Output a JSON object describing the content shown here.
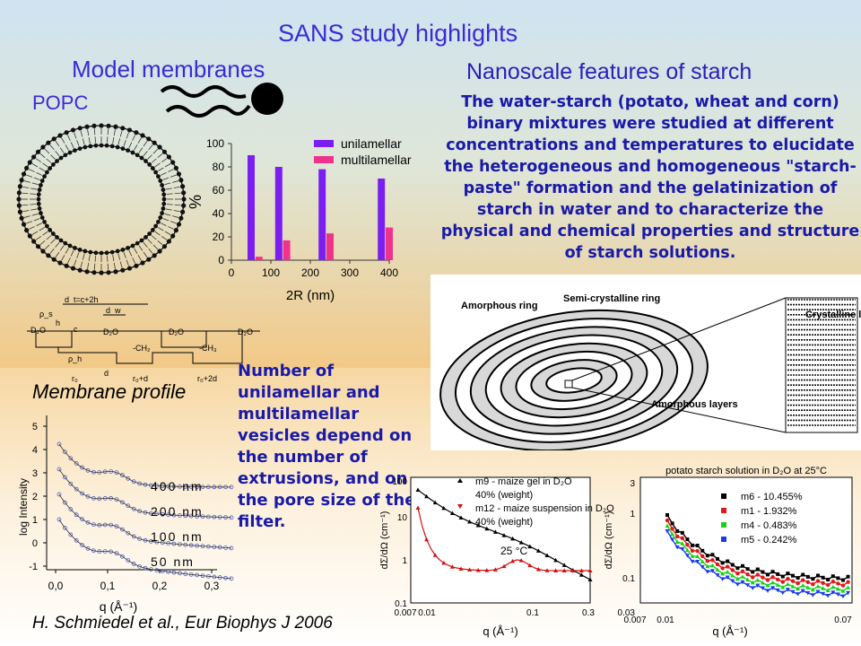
{
  "title": "SANS study highlights",
  "left": {
    "heading": "Model membranes",
    "popc_label": "POPC",
    "membrane_profile_label": "Membrane profile",
    "vesicle_text": "Number of unilamellar and multilamellar vesicles depend on the number of extrusions, and on the pore size of the filter.",
    "schematic_labels": {
      "d2o": "D₂O",
      "ch2": "-CH₂",
      "ch3": "-CH₃",
      "dt": "d_t=c+2h",
      "dw": "d_w",
      "h": "h",
      "c": "c",
      "d": "d",
      "rho_s": "ρ_s",
      "rho_h": "ρ_h",
      "r0": "r₀",
      "r0d": "r₀+d",
      "r02d": "r₀+2d"
    }
  },
  "right": {
    "heading": "Nanoscale features of starch",
    "text": "The water-starch (potato, wheat and corn) binary mixtures were studied at different concentrations and temperatures to elucidate the heterogeneous and homogeneous \"starch-paste\" formation and the gelatinization of starch in water and to characterize the physical and chemical properties and structure of starch solutions.",
    "diagram_labels": {
      "amorphous_ring": "Amorphous ring",
      "semi_crystalline": "Semi-crystalline ring",
      "crystalline": "Crystalline layers",
      "amorphous_layers": "Amorphous layers"
    }
  },
  "citation": "H. Schmiedel et al., Eur Biophys J 2006",
  "chart_data": [
    {
      "type": "bar",
      "xlabel": "2R (nm)",
      "ylabel": "%",
      "xlim": [
        0,
        400
      ],
      "ylim": [
        0,
        100
      ],
      "xticks": [
        "0",
        "100",
        "200",
        "300",
        "400"
      ],
      "yticks": [
        "0",
        "20",
        "40",
        "60",
        "80",
        "100"
      ],
      "legend_position": "top-right",
      "series": [
        {
          "name": "unilamellar",
          "color": "#7a1ff0",
          "x": [
            50,
            120,
            230,
            380
          ],
          "values": [
            90,
            80,
            78,
            70
          ]
        },
        {
          "name": "multilamellar",
          "color": "#f0338a",
          "x": [
            70,
            140,
            250,
            400
          ],
          "values": [
            3,
            17,
            23,
            28
          ]
        }
      ]
    },
    {
      "type": "scatter",
      "xlabel": "q (Å⁻¹)",
      "ylabel": "log Intensity",
      "xticks": [
        "0,0",
        "0,1",
        "0,2",
        "0,3"
      ],
      "yticks": [
        "-1",
        "0",
        "1",
        "2",
        "3",
        "4",
        "5"
      ],
      "curve_labels": [
        "400 nm",
        "200 nm",
        "100 nm",
        "50 nm"
      ]
    },
    {
      "type": "scatter",
      "xlabel": "q (Å⁻¹)",
      "ylabel": "dΣ/dΩ (cm⁻¹)",
      "scale": "log",
      "xticks": [
        "0.007",
        "0.01",
        "0.1",
        "0.3"
      ],
      "yticks": [
        "0.1",
        "1",
        "10",
        "100"
      ],
      "legend": [
        "m9 - maize gel in D₂O",
        "40% (weight)",
        "m12 - maize suspension in D₂O",
        "40% (weight)"
      ],
      "annotation": "25 °C",
      "series": [
        {
          "name": "m9 - maize gel in D₂O",
          "color": "#000000"
        },
        {
          "name": "m12 - maize suspension in D₂O",
          "color": "#d01010"
        }
      ]
    },
    {
      "type": "scatter",
      "xlabel": "q (Å⁻¹)",
      "ylabel": "dΣ/dΩ (cm⁻¹)",
      "scale": "log",
      "title": "potato starch solution in D₂O at 25°C",
      "xticks": [
        "0.007",
        "0.01",
        "0.07"
      ],
      "yticks": [
        "0.03",
        "0.1",
        "1",
        "3"
      ],
      "series": [
        {
          "name": "m6 - 10.455%",
          "color": "#000000"
        },
        {
          "name": "m1 - 1.932%",
          "color": "#e01818"
        },
        {
          "name": "m4 - 0.483%",
          "color": "#18d018"
        },
        {
          "name": "m5 - 0.242%",
          "color": "#1a3af0"
        }
      ]
    }
  ]
}
